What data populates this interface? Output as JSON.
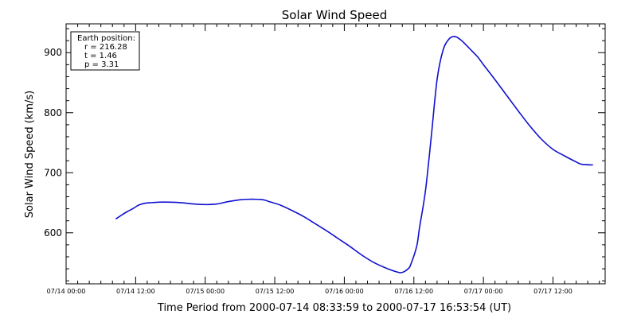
{
  "chart_data": {
    "type": "line",
    "title": "Solar Wind Speed",
    "xlabel": "Time Period from 2000-07-14 08:33:59 to 2000-07-17 16:53:54 (UT)",
    "ylabel": "Solar Wind Speed (km/s)",
    "x_unit": "hours since 07/14 00:00",
    "xlim": [
      0,
      93
    ],
    "ylim": [
      515,
      948
    ],
    "xticks": [
      {
        "value": 0,
        "label": "07/14 00:00"
      },
      {
        "value": 12,
        "label": "07/14 12:00"
      },
      {
        "value": 24,
        "label": "07/15 00:00"
      },
      {
        "value": 36,
        "label": "07/15 12:00"
      },
      {
        "value": 48,
        "label": "07/16 00:00"
      },
      {
        "value": 60,
        "label": "07/16 12:00"
      },
      {
        "value": 72,
        "label": "07/17 00:00"
      },
      {
        "value": 84,
        "label": "07/17 12:00"
      }
    ],
    "yticks": [
      {
        "value": 600,
        "label": "600"
      },
      {
        "value": 700,
        "label": "700"
      },
      {
        "value": 800,
        "label": "800"
      },
      {
        "value": 900,
        "label": "900"
      }
    ],
    "legend": {
      "placement": "top-left",
      "lines": [
        "Earth position:",
        "r = 216.28",
        "t = 1.46",
        "p = 3.31"
      ]
    },
    "series": [
      {
        "name": "",
        "color": "#1010d0",
        "x": [
          8.57,
          9.5,
          10.5,
          11.5,
          12.5,
          13.5,
          14.5,
          16,
          18,
          20,
          22,
          24,
          26,
          28,
          30,
          32,
          34,
          35,
          37,
          39,
          41,
          43,
          45,
          47,
          49,
          51,
          53,
          55,
          57,
          58,
          59,
          59.5,
          60.5,
          61,
          62,
          63,
          64,
          65,
          66,
          67,
          68,
          69,
          70,
          71,
          72,
          74,
          76,
          78,
          80,
          82,
          84,
          86,
          88,
          89,
          90.9
        ],
        "y": [
          623,
          629,
          635,
          640,
          646,
          649,
          650,
          651,
          651,
          650,
          648,
          647,
          648,
          652,
          655,
          656,
          655,
          652,
          646,
          637,
          627,
          615,
          603,
          590,
          577,
          563,
          551,
          542,
          535,
          534,
          540,
          548,
          578,
          610,
          670,
          760,
          855,
          903,
          922,
          927,
          922,
          913,
          903,
          893,
          880,
          855,
          829,
          803,
          778,
          756,
          739,
          728,
          718,
          714,
          713
        ]
      }
    ]
  }
}
